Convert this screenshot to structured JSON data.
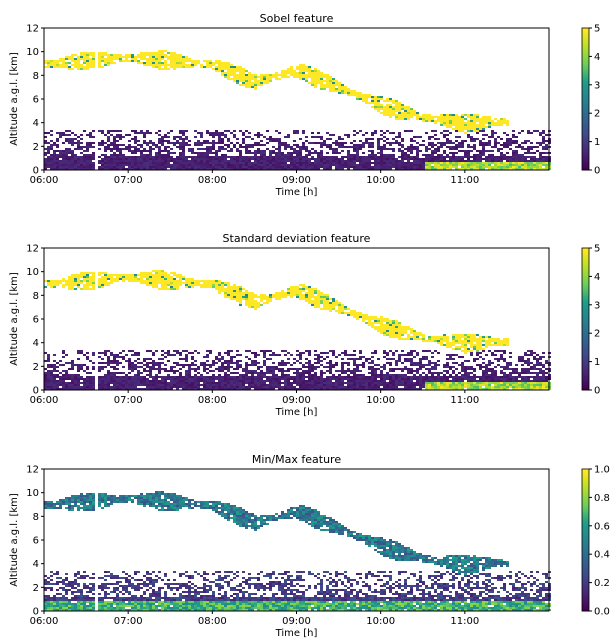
{
  "colors": {
    "viridis": [
      "#440154",
      "#482777",
      "#3f4a8a",
      "#31678e",
      "#26838f",
      "#1f9d8a",
      "#6cce5a",
      "#b6de2b",
      "#fee825"
    ],
    "axes": "#000000",
    "background": "#ffffff"
  },
  "chart_data": [
    {
      "type": "heatmap",
      "title": "Sobel feature",
      "xlabel": "Time [h]",
      "ylabel": "Altitude a.g.l. [km]",
      "x_ticks": [
        "06:00",
        "07:00",
        "08:00",
        "09:00",
        "10:00",
        "11:00"
      ],
      "x_range_hours": [
        6.0,
        12.0
      ],
      "y_ticks": [
        "0",
        "2",
        "4",
        "6",
        "8",
        "10",
        "12"
      ],
      "ylim": [
        0,
        12
      ],
      "colorbar": {
        "ticks": [
          "0",
          "1",
          "2",
          "3",
          "4",
          "5"
        ],
        "range": [
          0,
          5
        ],
        "colormap": "viridis"
      },
      "grid": false,
      "features": [
        {
          "desc": "cirrus band",
          "dominant_value": 5,
          "path_time_alt": [
            [
              6.0,
              9.0
            ],
            [
              7.0,
              9.6
            ],
            [
              8.0,
              9.0
            ],
            [
              8.5,
              7.5
            ],
            [
              9.0,
              8.5
            ],
            [
              9.5,
              7.0
            ],
            [
              10.0,
              5.5
            ],
            [
              10.5,
              4.5
            ],
            [
              11.0,
              4.0
            ],
            [
              11.5,
              4.2
            ]
          ]
        },
        {
          "desc": "boundary layer",
          "altitude_km": [
            0,
            3.5
          ],
          "dominant_value": 0.5
        },
        {
          "desc": "data gap",
          "time_h": [
            6.58,
            6.63
          ]
        }
      ]
    },
    {
      "type": "heatmap",
      "title": "Standard deviation feature",
      "xlabel": "Time [h]",
      "ylabel": "Altitude a.g.l. [km]",
      "x_ticks": [
        "06:00",
        "07:00",
        "08:00",
        "09:00",
        "10:00",
        "11:00"
      ],
      "x_range_hours": [
        6.0,
        12.0
      ],
      "y_ticks": [
        "0",
        "2",
        "4",
        "6",
        "8",
        "10",
        "12"
      ],
      "ylim": [
        0,
        12
      ],
      "colorbar": {
        "ticks": [
          "0",
          "1",
          "2",
          "3",
          "4",
          "5"
        ],
        "range": [
          0,
          5
        ],
        "colormap": "viridis"
      },
      "grid": false,
      "features": [
        {
          "desc": "cirrus band",
          "dominant_value": 5,
          "path_time_alt": [
            [
              6.0,
              9.0
            ],
            [
              7.0,
              9.6
            ],
            [
              8.0,
              9.0
            ],
            [
              8.5,
              7.5
            ],
            [
              9.0,
              8.5
            ],
            [
              9.5,
              7.0
            ],
            [
              10.0,
              5.5
            ],
            [
              10.5,
              4.5
            ],
            [
              11.0,
              4.0
            ],
            [
              11.5,
              4.2
            ]
          ]
        },
        {
          "desc": "boundary layer",
          "altitude_km": [
            0,
            3.5
          ],
          "dominant_value": 0.5
        },
        {
          "desc": "data gap",
          "time_h": [
            6.58,
            6.63
          ]
        }
      ]
    },
    {
      "type": "heatmap",
      "title": "Min/Max feature",
      "xlabel": "Time [h]",
      "ylabel": "Altitude a.g.l. [km]",
      "x_ticks": [
        "06:00",
        "07:00",
        "08:00",
        "09:00",
        "10:00",
        "11:00"
      ],
      "x_range_hours": [
        6.0,
        12.0
      ],
      "y_ticks": [
        "0",
        "2",
        "4",
        "6",
        "8",
        "10",
        "12"
      ],
      "ylim": [
        0,
        12
      ],
      "colorbar": {
        "ticks": [
          "0.0",
          "0.2",
          "0.4",
          "0.6",
          "0.8",
          "1.0"
        ],
        "range": [
          0,
          1
        ],
        "colormap": "viridis"
      },
      "grid": false,
      "features": [
        {
          "desc": "cirrus band",
          "dominant_value": 0.45,
          "path_time_alt": [
            [
              6.0,
              9.0
            ],
            [
              7.0,
              9.6
            ],
            [
              8.0,
              9.0
            ],
            [
              8.5,
              7.5
            ],
            [
              9.0,
              8.5
            ],
            [
              9.5,
              7.0
            ],
            [
              10.0,
              5.5
            ],
            [
              10.5,
              4.5
            ],
            [
              11.0,
              4.0
            ],
            [
              11.5,
              4.2
            ]
          ]
        },
        {
          "desc": "boundary layer",
          "altitude_km": [
            0,
            3.5
          ],
          "dominant_value": 0.2
        },
        {
          "desc": "near-surface layer",
          "altitude_km": [
            0,
            1.0
          ],
          "dominant_value": 0.75
        },
        {
          "desc": "data gap",
          "time_h": [
            6.58,
            6.63
          ]
        }
      ]
    }
  ]
}
